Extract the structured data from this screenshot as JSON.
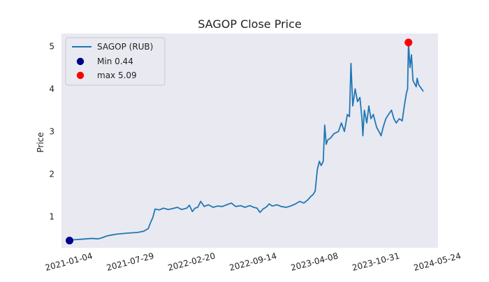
{
  "chart_data": {
    "type": "line",
    "title": "SAGOP Close Price",
    "xlabel": "",
    "ylabel": "Price",
    "xlim": [
      "2020-12-08",
      "2024-05-24"
    ],
    "ylim": [
      0.27,
      5.3
    ],
    "grid": false,
    "background": "#e9e9f1",
    "legend_position": "top-left",
    "x_ticks": [
      "2021-01-04",
      "2021-07-29",
      "2022-02-20",
      "2022-09-14",
      "2023-04-08",
      "2023-10-31",
      "2024-05-24"
    ],
    "y_ticks": [
      1,
      2,
      3,
      4,
      5
    ],
    "series": [
      {
        "name": "SAGOP (RUB)",
        "color": "#1f77b4",
        "points": [
          [
            "2020-12-28",
            0.46
          ],
          [
            "2021-01-04",
            0.44
          ],
          [
            "2021-01-20",
            0.46
          ],
          [
            "2021-02-10",
            0.47
          ],
          [
            "2021-03-01",
            0.48
          ],
          [
            "2021-03-20",
            0.49
          ],
          [
            "2021-04-10",
            0.48
          ],
          [
            "2021-04-25",
            0.51
          ],
          [
            "2021-05-10",
            0.55
          ],
          [
            "2021-05-25",
            0.57
          ],
          [
            "2021-06-10",
            0.59
          ],
          [
            "2021-06-25",
            0.6
          ],
          [
            "2021-07-10",
            0.61
          ],
          [
            "2021-07-29",
            0.62
          ],
          [
            "2021-08-20",
            0.63
          ],
          [
            "2021-09-10",
            0.66
          ],
          [
            "2021-09-25",
            0.72
          ],
          [
            "2021-10-05",
            0.9
          ],
          [
            "2021-10-10",
            0.97
          ],
          [
            "2021-10-18",
            1.18
          ],
          [
            "2021-11-01",
            1.16
          ],
          [
            "2021-11-15",
            1.2
          ],
          [
            "2021-12-01",
            1.17
          ],
          [
            "2021-12-15",
            1.19
          ],
          [
            "2022-01-01",
            1.22
          ],
          [
            "2022-01-15",
            1.17
          ],
          [
            "2022-02-01",
            1.2
          ],
          [
            "2022-02-10",
            1.27
          ],
          [
            "2022-02-20",
            1.12
          ],
          [
            "2022-03-01",
            1.2
          ],
          [
            "2022-03-10",
            1.22
          ],
          [
            "2022-03-20",
            1.36
          ],
          [
            "2022-04-01",
            1.24
          ],
          [
            "2022-04-15",
            1.28
          ],
          [
            "2022-05-01",
            1.22
          ],
          [
            "2022-05-15",
            1.25
          ],
          [
            "2022-06-01",
            1.24
          ],
          [
            "2022-06-15",
            1.28
          ],
          [
            "2022-07-01",
            1.32
          ],
          [
            "2022-07-15",
            1.24
          ],
          [
            "2022-08-01",
            1.26
          ],
          [
            "2022-08-15",
            1.22
          ],
          [
            "2022-09-01",
            1.26
          ],
          [
            "2022-09-14",
            1.22
          ],
          [
            "2022-09-25",
            1.2
          ],
          [
            "2022-10-05",
            1.1
          ],
          [
            "2022-10-15",
            1.18
          ],
          [
            "2022-10-25",
            1.22
          ],
          [
            "2022-11-05",
            1.3
          ],
          [
            "2022-11-15",
            1.25
          ],
          [
            "2022-12-01",
            1.28
          ],
          [
            "2022-12-15",
            1.24
          ],
          [
            "2023-01-01",
            1.22
          ],
          [
            "2023-01-15",
            1.25
          ],
          [
            "2023-02-01",
            1.3
          ],
          [
            "2023-02-15",
            1.36
          ],
          [
            "2023-03-01",
            1.32
          ],
          [
            "2023-03-15",
            1.4
          ],
          [
            "2023-03-25",
            1.48
          ],
          [
            "2023-04-01",
            1.52
          ],
          [
            "2023-04-08",
            1.6
          ],
          [
            "2023-04-15",
            2.1
          ],
          [
            "2023-04-22",
            2.3
          ],
          [
            "2023-04-28",
            2.2
          ],
          [
            "2023-05-05",
            2.3
          ],
          [
            "2023-05-10",
            3.15
          ],
          [
            "2023-05-15",
            2.7
          ],
          [
            "2023-05-20",
            2.8
          ],
          [
            "2023-05-30",
            2.85
          ],
          [
            "2023-06-10",
            2.95
          ],
          [
            "2023-06-25",
            3.0
          ],
          [
            "2023-07-05",
            3.2
          ],
          [
            "2023-07-15",
            3.0
          ],
          [
            "2023-07-25",
            3.4
          ],
          [
            "2023-08-01",
            3.35
          ],
          [
            "2023-08-06",
            4.6
          ],
          [
            "2023-08-12",
            3.6
          ],
          [
            "2023-08-20",
            4.0
          ],
          [
            "2023-08-28",
            3.7
          ],
          [
            "2023-09-05",
            3.8
          ],
          [
            "2023-09-12",
            3.3
          ],
          [
            "2023-09-15",
            2.9
          ],
          [
            "2023-09-20",
            3.5
          ],
          [
            "2023-09-28",
            3.2
          ],
          [
            "2023-10-05",
            3.6
          ],
          [
            "2023-10-12",
            3.3
          ],
          [
            "2023-10-20",
            3.4
          ],
          [
            "2023-10-31",
            3.1
          ],
          [
            "2023-11-08",
            3.0
          ],
          [
            "2023-11-15",
            2.9
          ],
          [
            "2023-11-22",
            3.1
          ],
          [
            "2023-12-01",
            3.3
          ],
          [
            "2023-12-10",
            3.4
          ],
          [
            "2023-12-20",
            3.5
          ],
          [
            "2023-12-28",
            3.3
          ],
          [
            "2024-01-05",
            3.2
          ],
          [
            "2024-01-15",
            3.3
          ],
          [
            "2024-01-25",
            3.25
          ],
          [
            "2024-02-01",
            3.6
          ],
          [
            "2024-02-08",
            3.9
          ],
          [
            "2024-02-12",
            4.0
          ],
          [
            "2024-02-15",
            5.09
          ],
          [
            "2024-02-20",
            4.5
          ],
          [
            "2024-02-25",
            4.8
          ],
          [
            "2024-03-01",
            4.2
          ],
          [
            "2024-03-08",
            4.1
          ],
          [
            "2024-03-12",
            4.05
          ],
          [
            "2024-03-15",
            4.25
          ],
          [
            "2024-03-20",
            4.1
          ],
          [
            "2024-03-30",
            4.0
          ],
          [
            "2024-04-04",
            3.95
          ]
        ]
      }
    ],
    "markers": [
      {
        "label": "Min 0.44",
        "date": "2021-01-04",
        "value": 0.44,
        "color": "#00008b"
      },
      {
        "label": "max 5.09",
        "date": "2024-02-15",
        "value": 5.09,
        "color": "#ff0000"
      }
    ]
  }
}
